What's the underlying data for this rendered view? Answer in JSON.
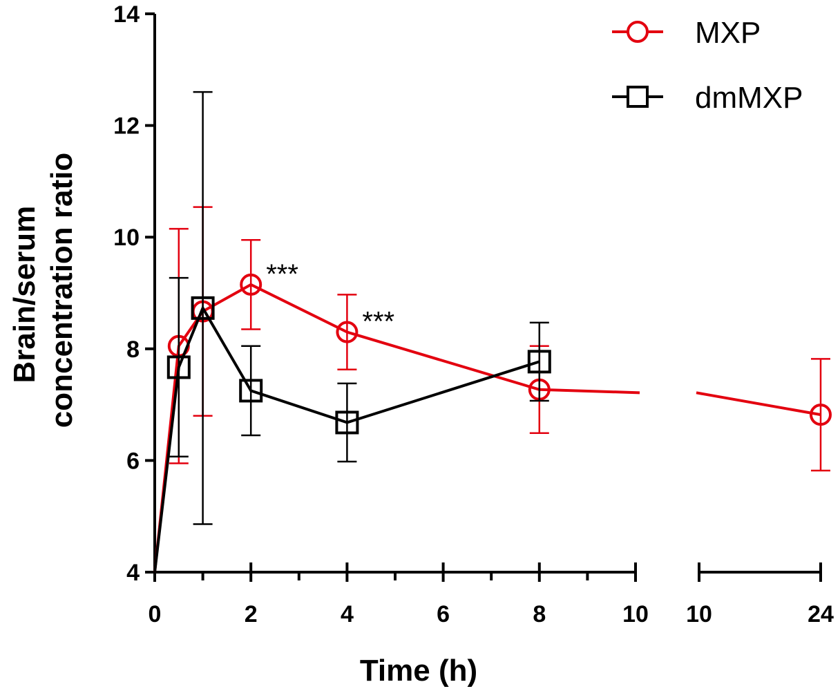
{
  "chart_data": {
    "type": "line",
    "xlabel": "Time (h)",
    "ylabel_lines": [
      "Brain/serum",
      "concentration ratio"
    ],
    "ylim": [
      4,
      14
    ],
    "yticks": [
      4,
      6,
      8,
      10,
      12,
      14
    ],
    "x_segments": [
      {
        "range": [
          0,
          10
        ],
        "ticks": [
          0,
          2,
          4,
          6,
          8,
          10
        ],
        "minor_step": 1
      },
      {
        "range": [
          10,
          24
        ],
        "ticks": [
          10,
          24
        ]
      }
    ],
    "legend_position": "top-right",
    "series": [
      {
        "name": "MXP",
        "color": "#e3000f",
        "marker": "circle",
        "points": [
          {
            "x": 0,
            "y": 4.0
          },
          {
            "x": 0.5,
            "y": 8.05,
            "err_low": 2.1,
            "err_high": 2.1
          },
          {
            "x": 1,
            "y": 8.67,
            "err_low": 1.87,
            "err_high": 1.87
          },
          {
            "x": 2,
            "y": 9.15,
            "err_low": 0.8,
            "err_high": 0.8
          },
          {
            "x": 4,
            "y": 8.3,
            "err_low": 0.67,
            "err_high": 0.67
          },
          {
            "x": 8,
            "y": 7.27,
            "err_low": 0.78,
            "err_high": 0.78
          },
          {
            "x": 24,
            "y": 6.82,
            "err_low": 1.0,
            "err_high": 1.0
          }
        ]
      },
      {
        "name": "dmMXP",
        "color": "#000000",
        "marker": "square",
        "points": [
          {
            "x": 0,
            "y": 4.0
          },
          {
            "x": 0.5,
            "y": 7.67,
            "err_low": 1.6,
            "err_high": 1.6
          },
          {
            "x": 1,
            "y": 8.73,
            "err_low": 3.87,
            "err_high": 3.87
          },
          {
            "x": 2,
            "y": 7.25,
            "err_low": 0.8,
            "err_high": 0.8
          },
          {
            "x": 4,
            "y": 6.68,
            "err_low": 0.7,
            "err_high": 0.7
          },
          {
            "x": 8,
            "y": 7.77,
            "err_low": 0.7,
            "err_high": 0.7
          }
        ]
      }
    ],
    "annotations": [
      {
        "text": "***",
        "x": 2,
        "y": 9.15
      },
      {
        "text": "***",
        "x": 4,
        "y": 8.3
      }
    ]
  }
}
